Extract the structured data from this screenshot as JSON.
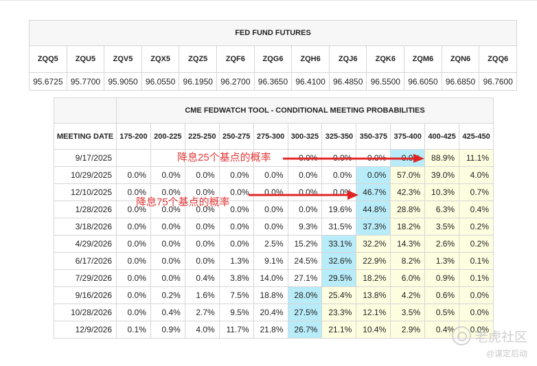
{
  "futures": {
    "title": "FED FUND FUTURES",
    "headers": [
      "ZQQ5",
      "ZQU5",
      "ZQV5",
      "ZQX5",
      "ZQZ5",
      "ZQF6",
      "ZQG6",
      "ZQH6",
      "ZQJ6",
      "ZQK6",
      "ZQM6",
      "ZQN6",
      "ZQQ6"
    ],
    "values": [
      "95.6725",
      "95.7700",
      "95.9050",
      "96.0550",
      "96.1950",
      "96.2700",
      "96.3650",
      "96.4100",
      "96.4850",
      "96.5500",
      "96.6050",
      "96.6850",
      "96.7600"
    ]
  },
  "fedwatch": {
    "title": "CME FEDWATCH TOOL - CONDITIONAL MEETING PROBABILITIES",
    "date_header": "MEETING DATE",
    "headers": [
      "175-200",
      "200-225",
      "225-250",
      "250-275",
      "275-300",
      "300-325",
      "325-350",
      "350-375",
      "375-400",
      "400-425",
      "425-450"
    ],
    "rows": [
      {
        "date": "9/17/2025",
        "cells": [
          "",
          "",
          "",
          "",
          "",
          "0.0%",
          "0.0%",
          "0.0%",
          "0.0%",
          "88.9%",
          "11.1%"
        ]
      },
      {
        "date": "10/29/2025",
        "cells": [
          "0.0%",
          "0.0%",
          "0.0%",
          "0.0%",
          "0.0%",
          "0.0%",
          "0.0%",
          "0.0%",
          "57.0%",
          "39.0%",
          "4.0%"
        ]
      },
      {
        "date": "12/10/2025",
        "cells": [
          "0.0%",
          "0.0%",
          "0.0%",
          "0.0%",
          "0.0%",
          "0.0%",
          "0.0%",
          "46.7%",
          "42.3%",
          "10.3%",
          "0.7%"
        ]
      },
      {
        "date": "1/28/2026",
        "cells": [
          "0.0%",
          "0.0%",
          "0.0%",
          "0.0%",
          "0.0%",
          "0.0%",
          "19.6%",
          "44.8%",
          "28.8%",
          "6.3%",
          "0.4%"
        ]
      },
      {
        "date": "3/18/2026",
        "cells": [
          "0.0%",
          "0.0%",
          "0.0%",
          "0.0%",
          "0.0%",
          "9.3%",
          "31.5%",
          "37.3%",
          "18.2%",
          "3.5%",
          "0.2%"
        ]
      },
      {
        "date": "4/29/2026",
        "cells": [
          "0.0%",
          "0.0%",
          "0.0%",
          "0.0%",
          "2.5%",
          "15.2%",
          "33.1%",
          "32.2%",
          "14.3%",
          "2.6%",
          "0.2%"
        ]
      },
      {
        "date": "6/17/2026",
        "cells": [
          "0.0%",
          "0.0%",
          "0.0%",
          "1.3%",
          "9.1%",
          "24.5%",
          "32.6%",
          "22.9%",
          "8.2%",
          "1.3%",
          "0.1%"
        ]
      },
      {
        "date": "7/29/2026",
        "cells": [
          "0.0%",
          "0.0%",
          "0.4%",
          "3.8%",
          "14.0%",
          "27.1%",
          "29.5%",
          "18.2%",
          "6.0%",
          "0.9%",
          "0.1%"
        ]
      },
      {
        "date": "9/16/2026",
        "cells": [
          "0.0%",
          "0.2%",
          "1.6%",
          "7.5%",
          "18.8%",
          "28.0%",
          "25.4%",
          "13.8%",
          "4.2%",
          "0.6%",
          "0.0%"
        ]
      },
      {
        "date": "10/28/2026",
        "cells": [
          "0.0%",
          "0.4%",
          "2.7%",
          "9.5%",
          "20.4%",
          "27.5%",
          "23.3%",
          "12.1%",
          "3.5%",
          "0.5%",
          "0.0%"
        ]
      },
      {
        "date": "12/9/2026",
        "cells": [
          "0.1%",
          "0.9%",
          "4.0%",
          "11.7%",
          "21.8%",
          "26.7%",
          "21.1%",
          "10.4%",
          "2.9%",
          "0.4%",
          "0.0%"
        ]
      }
    ],
    "highlight_cols": [
      8,
      7,
      7,
      7,
      7,
      6,
      6,
      6,
      5,
      5,
      5
    ],
    "colors": {
      "highlight": "#b8ecf9",
      "shade": "#fdfde0",
      "annotation": "#e53a3a"
    }
  },
  "annotations": {
    "cut25": "降息25个基点的概率",
    "cut75": "降息75个基点的概率"
  },
  "watermark": {
    "line1": "老虎社区",
    "line2": "@谋定后动"
  }
}
